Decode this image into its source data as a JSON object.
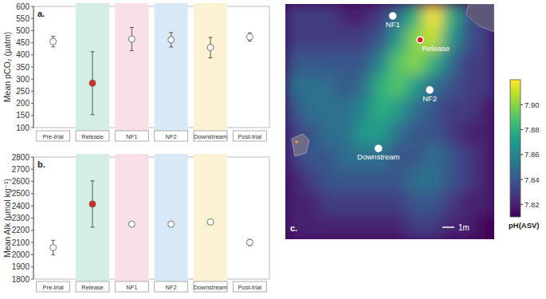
{
  "chart_data": [
    {
      "type": "errorbar",
      "title": "a.",
      "ylabel": "Mean pCO₂ (µatm)",
      "categories": [
        "Pre-trial",
        "Release",
        "NF1",
        "NF2",
        "Downstream",
        "Post-trial"
      ],
      "values": [
        455,
        283,
        465,
        462,
        430,
        474
      ],
      "errors": [
        22,
        130,
        48,
        30,
        42,
        17
      ],
      "colors": [
        "#ffffff",
        "#e02424",
        "#ffffff",
        "#ffffff",
        "#ffffff",
        "#ffffff"
      ],
      "ylim": [
        100,
        600
      ],
      "yticks": [
        100,
        150,
        200,
        250,
        300,
        350,
        400,
        450,
        500,
        550,
        600
      ]
    },
    {
      "type": "errorbar",
      "title": "b.",
      "ylabel": "Mean Alk (µmol kg⁻¹)",
      "categories": [
        "Pre-trial",
        "Release",
        "NF1",
        "NF2",
        "Downstream",
        "Post-trial"
      ],
      "values": [
        2058,
        2415,
        2250,
        2250,
        2268,
        2100
      ],
      "errors": [
        60,
        190,
        0,
        8,
        0,
        25
      ],
      "colors": [
        "#ffffff",
        "#e02424",
        "#ffffff",
        "#ffffff",
        "#ffffff",
        "#ffffff"
      ],
      "ylim": [
        1800,
        2800
      ],
      "yticks": [
        1800,
        1900,
        2000,
        2100,
        2200,
        2300,
        2400,
        2500,
        2600,
        2700,
        2800
      ]
    },
    {
      "type": "heatmap",
      "title": "c.",
      "tick_labels": false,
      "xlim": [
        0,
        17.5
      ],
      "ylim": [
        0,
        19.7
      ],
      "cells": [
        [
          7.83,
          7.83,
          7.83,
          7.82,
          7.82,
          7.83,
          7.85,
          7.88,
          7.92,
          7.88,
          7.84,
          7.83
        ],
        [
          7.83,
          7.83,
          7.83,
          7.83,
          7.83,
          7.84,
          7.87,
          7.9,
          7.91,
          7.87,
          7.84,
          7.83
        ],
        [
          7.84,
          7.84,
          7.84,
          7.84,
          7.84,
          7.86,
          7.89,
          7.9,
          7.88,
          7.85,
          7.83,
          7.83
        ],
        [
          7.85,
          7.85,
          7.85,
          7.84,
          7.85,
          7.88,
          7.89,
          7.87,
          7.85,
          7.84,
          7.83,
          7.83
        ],
        [
          7.84,
          7.85,
          7.85,
          7.85,
          7.86,
          7.88,
          7.87,
          7.85,
          7.84,
          7.83,
          7.83,
          7.82
        ],
        [
          7.83,
          7.84,
          7.85,
          7.85,
          7.87,
          7.87,
          7.85,
          7.84,
          7.84,
          7.83,
          7.82,
          7.82
        ],
        [
          7.83,
          7.84,
          7.84,
          7.85,
          7.85,
          7.85,
          7.84,
          7.84,
          7.85,
          7.84,
          7.83,
          7.82
        ],
        [
          7.82,
          7.83,
          7.84,
          7.84,
          7.84,
          7.84,
          7.84,
          7.85,
          7.85,
          7.84,
          7.83,
          7.82
        ],
        [
          7.82,
          7.82,
          7.83,
          7.83,
          7.83,
          7.83,
          7.83,
          7.84,
          7.84,
          7.83,
          7.82,
          7.82
        ],
        [
          7.82,
          7.82,
          7.82,
          7.82,
          7.82,
          7.82,
          7.82,
          7.83,
          7.83,
          7.82,
          7.82,
          7.81
        ]
      ],
      "colorbar_label": "pH(ASV)",
      "colorbar_range": [
        7.81,
        7.92
      ],
      "colorbar_ticks": [
        7.82,
        7.84,
        7.86,
        7.88,
        {
          "value": 7.9,
          "label": "7.90"
        }
      ],
      "points": [
        {
          "label": "NF1",
          "x": 9.0,
          "y": 1.0,
          "color": "#ffffff"
        },
        {
          "label": "Release",
          "x": 11.3,
          "y": 3.0,
          "color": "#e02424"
        },
        {
          "label": "NF2",
          "x": 12.1,
          "y": 7.2,
          "color": "#ffffff"
        },
        {
          "label": "Downstream",
          "x": 7.8,
          "y": 12.1,
          "color": "#ffffff"
        }
      ],
      "scale_bar": {
        "label": "1m",
        "length": 1
      }
    }
  ]
}
